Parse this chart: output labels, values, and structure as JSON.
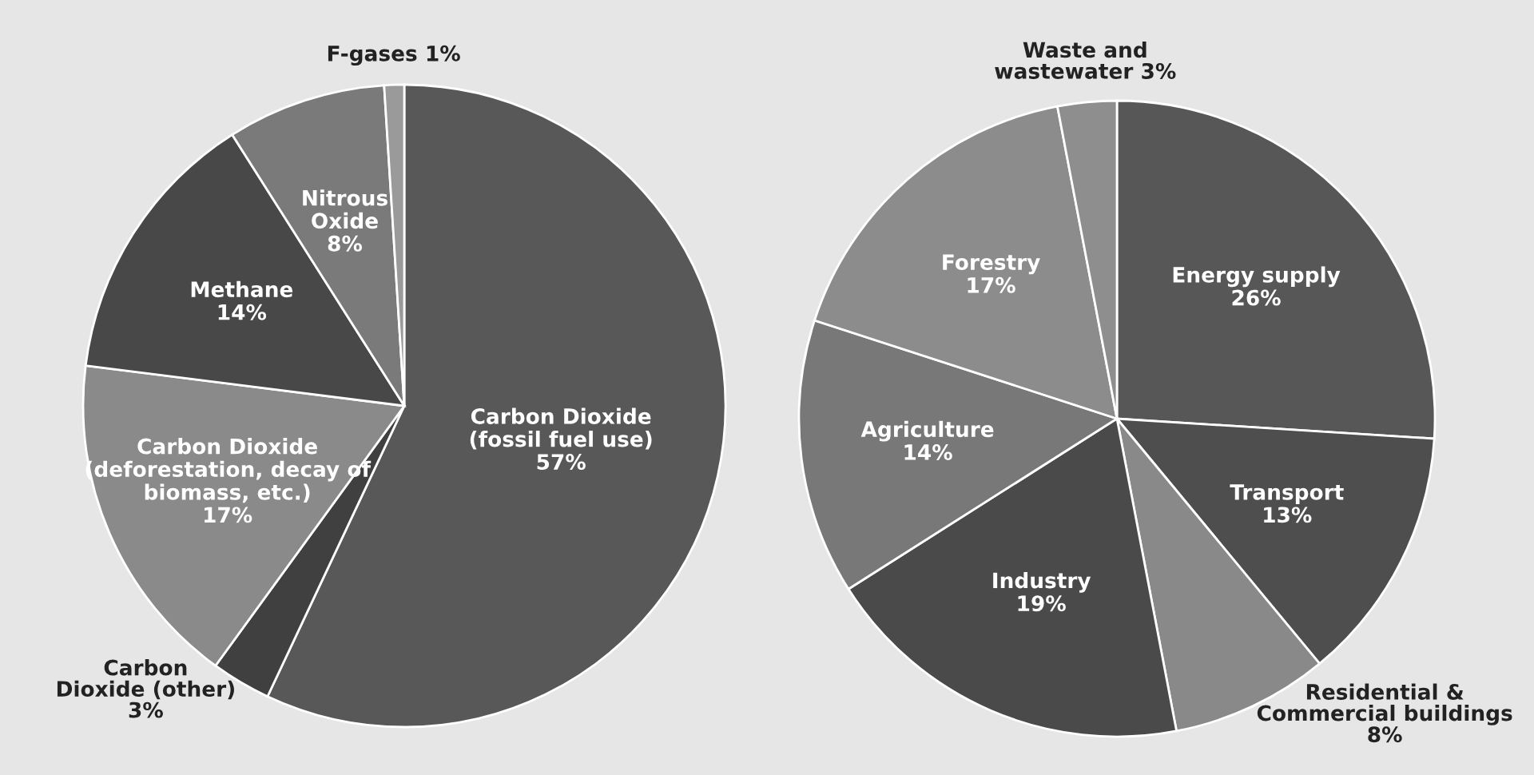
{
  "chart_data": [
    {
      "type": "pie",
      "categories": [
        "Carbon Dioxide\n(fossil fuel use)",
        "Carbon\nDioxide (other)",
        "Carbon Dioxide\n(deforestation, decay of\nbiomass, etc.)",
        "Methane",
        "Nitrous\nOxide",
        "F-gases"
      ],
      "values": [
        57,
        3,
        17,
        14,
        8,
        1
      ],
      "colors": [
        "#585858",
        "#404040",
        "#8a8a8a",
        "#484848",
        "#7a7a7a",
        "#9a9a9a"
      ],
      "value_labels": [
        "57%",
        "3%",
        "17%",
        "14%",
        "8%",
        "1%"
      ]
    },
    {
      "type": "pie",
      "categories": [
        "Energy supply",
        "Transport",
        "Residential &\nCommercial buildings",
        "Industry",
        "Agriculture",
        "Forestry",
        "Waste and\nwastewater"
      ],
      "values": [
        26,
        13,
        8,
        19,
        14,
        17,
        3
      ],
      "colors": [
        "#575757",
        "#4e4e4e",
        "#898989",
        "#4a4a4a",
        "#787878",
        "#8c8c8c",
        "#8e8e8e"
      ],
      "value_labels": [
        "26%",
        "13%",
        "8%",
        "19%",
        "14%",
        "17%",
        "3%"
      ]
    }
  ]
}
